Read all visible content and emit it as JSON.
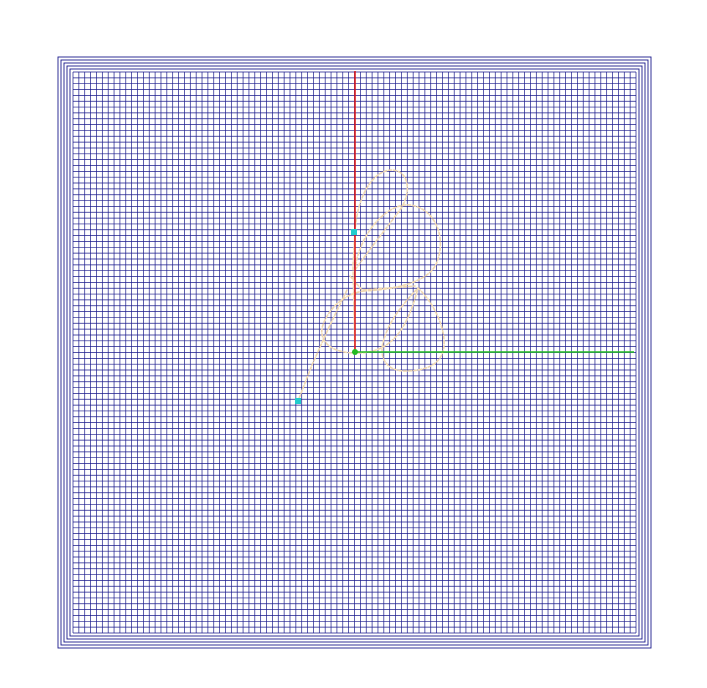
{
  "view": {
    "background_color": "#ffffff",
    "grid_color": "#1a1a8c",
    "grid_divisions": 96,
    "border_lines": 5
  },
  "axes": {
    "x_axis_color": "#22bb22",
    "y_axis_color": "#dd1111"
  },
  "curve": {
    "color": "#f0d8b0",
    "node_color": "#22cccc",
    "style": "dashed"
  }
}
